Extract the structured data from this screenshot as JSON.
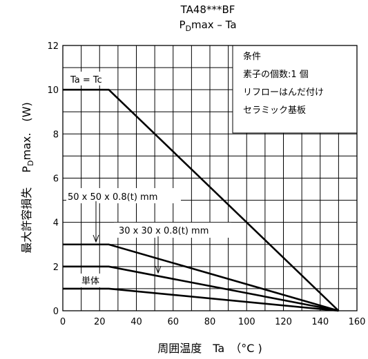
{
  "chart_data": {
    "type": "line",
    "title": "TA48***BF",
    "subtitle": {
      "prefix": "P",
      "sub": "D",
      "suffix": "max – Ta"
    },
    "xlabel": "周囲温度　Ta　（°C )",
    "ylabel": {
      "jp": "最大許容損失",
      "prefix": "P",
      "sub": "D",
      "suffix": "max.　(W)"
    },
    "xlim": [
      0,
      160
    ],
    "ylim": [
      0,
      12
    ],
    "x_ticks": [
      "0",
      "20",
      "40",
      "60",
      "80",
      "100",
      "120",
      "140",
      "160"
    ],
    "y_ticks": [
      "0",
      "2",
      "4",
      "6",
      "8",
      "10",
      "12"
    ],
    "grid": true,
    "series": [
      {
        "name": "Ta = Tc",
        "x": [
          0,
          25,
          150
        ],
        "y": [
          10,
          10,
          0
        ]
      },
      {
        "name": "50 x 50 x 0.8(t) mm",
        "x": [
          0,
          25,
          150
        ],
        "y": [
          3,
          3,
          0
        ]
      },
      {
        "name": "30 x 30 x 0.8(t) mm",
        "x": [
          0,
          25,
          150
        ],
        "y": [
          2,
          2,
          0
        ]
      },
      {
        "name": "単体",
        "x": [
          0,
          25,
          150
        ],
        "y": [
          1,
          1,
          0
        ]
      }
    ],
    "conditions": [
      "条件",
      "素子の個数:1 個",
      "リフローはんだ付け",
      "セラミック基板"
    ]
  }
}
